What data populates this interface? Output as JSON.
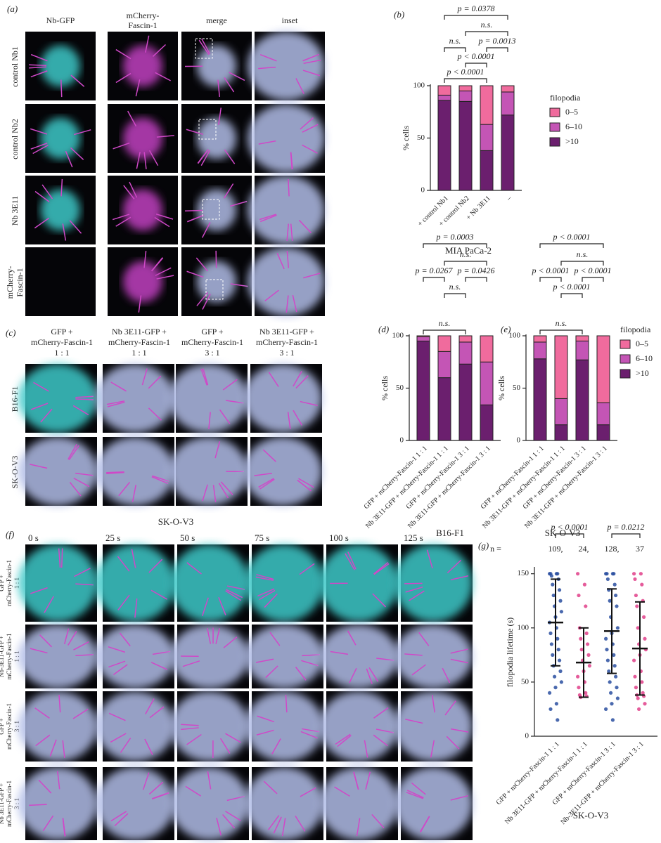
{
  "panel_a": {
    "label": "(a)",
    "columns": [
      [
        "Nb-GFP"
      ],
      [
        "mCherry-",
        "Fascin-1"
      ],
      [
        "merge"
      ],
      [
        "inset"
      ]
    ],
    "rows": [
      [
        "control Nb1"
      ],
      [
        "control Nb2"
      ],
      [
        "Nb 3E11"
      ],
      [
        "mCherry-",
        "Fascin-1"
      ]
    ]
  },
  "panel_c": {
    "label": "(c)",
    "columns": [
      [
        "GFP +",
        "mCherry-Fascin-1",
        "1 : 1"
      ],
      [
        "Nb 3E11-GFP +",
        "mCherry-Fascin-1",
        "1 : 1"
      ],
      [
        "GFP +",
        "mCherry-Fascin-1",
        "3 : 1"
      ],
      [
        "Nb 3E11-GFP +",
        "mCherry-Fascin-1",
        "3 : 1"
      ]
    ],
    "rows": [
      "B16-F1",
      "SK-O-V3"
    ]
  },
  "panel_f": {
    "label": "(f)",
    "title": "SK-O-V3",
    "times": [
      "0 s",
      "25 s",
      "50 s",
      "75 s",
      "100 s",
      "125 s"
    ],
    "rows": [
      [
        "GFP +",
        "mCherry-Fascin-1",
        "1 : 1"
      ],
      [
        "Nb-3E11-GFP +",
        "mCherry-Fascin-1",
        "1 : 1"
      ],
      [
        "GFP +",
        "mCherry-Fascin-1",
        "3 : 1"
      ],
      [
        "Nb 3E11-GFP +",
        "mCherry-Fascin-1",
        "3 : 1"
      ]
    ]
  },
  "chart_data": [
    {
      "panel": "(b)",
      "type": "bar",
      "stacked": true,
      "categories": [
        "+ control Nb1",
        "+ control Nb2",
        "+ Nb 3E11",
        "–"
      ],
      "series": [
        {
          "name": ">10",
          "color": "#6b1f6e",
          "values": [
            86,
            85,
            38,
            72
          ]
        },
        {
          "name": "6–10",
          "color": "#c455b5",
          "values": [
            5,
            10,
            25,
            22
          ]
        },
        {
          "name": "0–5",
          "color": "#f06b9d",
          "values": [
            9,
            5,
            37,
            6
          ]
        }
      ],
      "ylim": [
        0,
        100
      ],
      "yticks": [
        0,
        50,
        100
      ],
      "y_label": "% cells",
      "x_label": "MIA PaCa-2",
      "legend_title": "filopodia",
      "annotations": [
        "p = 0.0378",
        "n.s.",
        "n.s.",
        "p = 0.0013",
        "p < 0.0001",
        "p < 0.0001"
      ]
    },
    {
      "panel": "(d)",
      "type": "bar",
      "stacked": true,
      "categories": [
        "GFP + mCherry-Fascin-1 1 : 1",
        "Nb 3E11-GFP + mCherry-Fascin-1 1 : 1",
        "GFP + mCherry-Fascin-1 3 : 1",
        "Nb 3E11-GFP + mCherry-Fascin-1 3 : 1"
      ],
      "series": [
        {
          "name": ">10",
          "color": "#6b1f6e",
          "values": [
            95,
            60,
            73,
            34
          ]
        },
        {
          "name": "6–10",
          "color": "#c455b5",
          "values": [
            4,
            25,
            21,
            41
          ]
        },
        {
          "name": "0–5",
          "color": "#f06b9d",
          "values": [
            1,
            15,
            6,
            25
          ]
        }
      ],
      "ylim": [
        0,
        100
      ],
      "yticks": [
        0,
        50,
        100
      ],
      "y_label": "% cells",
      "x_label": "B16-F1",
      "annotations": [
        "p = 0.0003",
        "n.s.",
        "p = 0.0267",
        "p = 0.0426",
        "n.s.",
        "n.s."
      ]
    },
    {
      "panel": "(e)",
      "type": "bar",
      "stacked": true,
      "categories": [
        "GFP + mCherry-Fascin-1 1 : 1",
        "Nb 3E11-GFP + mCherry-Fascin-1 1 : 1",
        "GFP + mCherry-Fascin-1 3 : 1",
        "Nb 3E11-GFP + mCherry-Fascin-1 3 : 1"
      ],
      "series": [
        {
          "name": ">10",
          "color": "#6b1f6e",
          "values": [
            78,
            15,
            77,
            15
          ]
        },
        {
          "name": "6–10",
          "color": "#c455b5",
          "values": [
            16,
            25,
            18,
            21
          ]
        },
        {
          "name": "0–5",
          "color": "#f06b9d",
          "values": [
            6,
            60,
            5,
            64
          ]
        }
      ],
      "ylim": [
        0,
        100
      ],
      "yticks": [
        0,
        50,
        100
      ],
      "y_label": "% cells",
      "x_label": "SK-O-V3",
      "legend_title": "filopodia",
      "annotations": [
        "p < 0.0001",
        "n.s.",
        "p < 0.0001",
        "p < 0.0001",
        "p < 0.0001",
        "n.s."
      ]
    },
    {
      "panel": "(g)",
      "type": "dot",
      "categories": [
        "GFP + mCherry-Fascin-1 1 : 1",
        "Nb 3E11-GFP + mCherry-Fascin-1 1 : 1",
        "GFP + mCherry-Fascin-1 3 : 1",
        "Nb-3E11-GFP + mCherry-Fascin-1 3 : 1"
      ],
      "n_title": "n =",
      "n_labels": [
        "109,",
        "24,",
        "128,",
        "37"
      ],
      "groups": [
        {
          "color": "#2a4fa0",
          "mean": 105,
          "sd": 40,
          "values": [
            150,
            150,
            150,
            150,
            148,
            145,
            140,
            135,
            130,
            125,
            120,
            115,
            110,
            105,
            100,
            95,
            90,
            85,
            80,
            75,
            70,
            65,
            60,
            55,
            50,
            45,
            40,
            30,
            25,
            15
          ]
        },
        {
          "color": "#e0408a",
          "mean": 68,
          "sd": 32,
          "values": [
            150,
            140,
            130,
            120,
            100,
            95,
            90,
            85,
            80,
            75,
            70,
            65,
            60,
            55,
            50,
            45,
            40,
            38,
            37,
            36
          ]
        },
        {
          "color": "#2a4fa0",
          "mean": 97,
          "sd": 39,
          "values": [
            150,
            150,
            150,
            150,
            145,
            140,
            135,
            130,
            125,
            120,
            110,
            100,
            95,
            90,
            85,
            80,
            75,
            70,
            65,
            60,
            55,
            50,
            45,
            40,
            35,
            30,
            25,
            15
          ]
        },
        {
          "color": "#e0408a",
          "mean": 81,
          "sd": 43,
          "values": [
            150,
            150,
            145,
            140,
            130,
            125,
            120,
            110,
            100,
            90,
            85,
            80,
            75,
            70,
            60,
            55,
            50,
            45,
            40,
            38,
            37,
            35,
            30,
            25
          ]
        }
      ],
      "ylim": [
        0,
        155
      ],
      "yticks": [
        0,
        50,
        100,
        150
      ],
      "y_label": "filopodia lifetime (s)",
      "x_label": "SK-O-V3",
      "annotations": [
        "p < 0.0001",
        "p = 0.0212"
      ]
    }
  ]
}
